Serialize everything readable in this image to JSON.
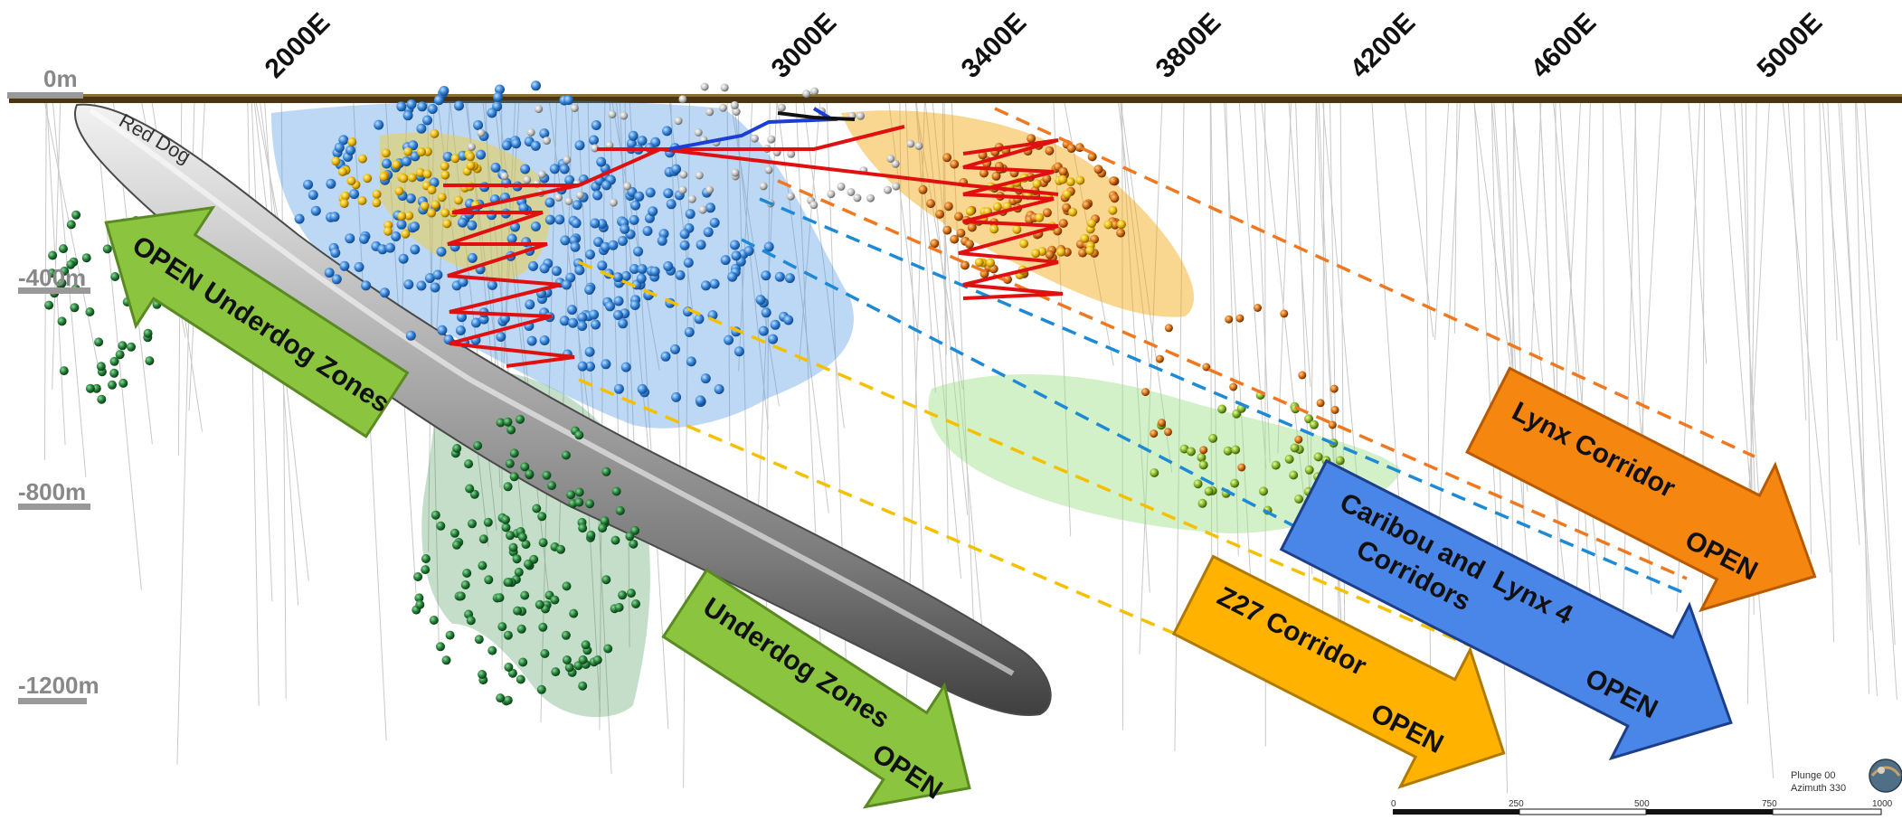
{
  "eastings": [
    "2000E",
    "3000E",
    "3400E",
    "3800E",
    "4200E",
    "4600E",
    "5000E"
  ],
  "depths": [
    "0m",
    "-400m",
    "-800m",
    "-1200m"
  ],
  "deposit_label": "Red Dog",
  "arrows": {
    "open_underdog": "OPEN Underdog Zones",
    "underdog_open_1": "Underdog Zones",
    "underdog_open_2": "OPEN",
    "lynx_1": "Lynx Corridor",
    "lynx_2": "OPEN",
    "caribou_1": "Caribou and",
    "caribou_lynx4": "Lynx 4",
    "caribou_2": "Corridors",
    "caribou_3": "OPEN",
    "z27_1": "Z27 Corridor",
    "z27_2": "OPEN"
  },
  "view": {
    "plunge": "Plunge 00",
    "azimuth": "Azimuth 330"
  },
  "scale_bar": [
    "0",
    "250",
    "500",
    "750",
    "1000"
  ],
  "colors": {
    "green_arrow": "#8bc540",
    "orange_arrow": "#f5860f",
    "blue_arrow": "#4a86e8",
    "yellow_arrow": "#ffb300",
    "lynx4_text": "#8fe34a",
    "blue_points": "#2f7fd6",
    "green_points": "#1f7a33",
    "orange_dash": "#f07820",
    "blue_dash": "#1e8ad6",
    "yellow_dash": "#f5c000",
    "section_red": "#e01010"
  }
}
